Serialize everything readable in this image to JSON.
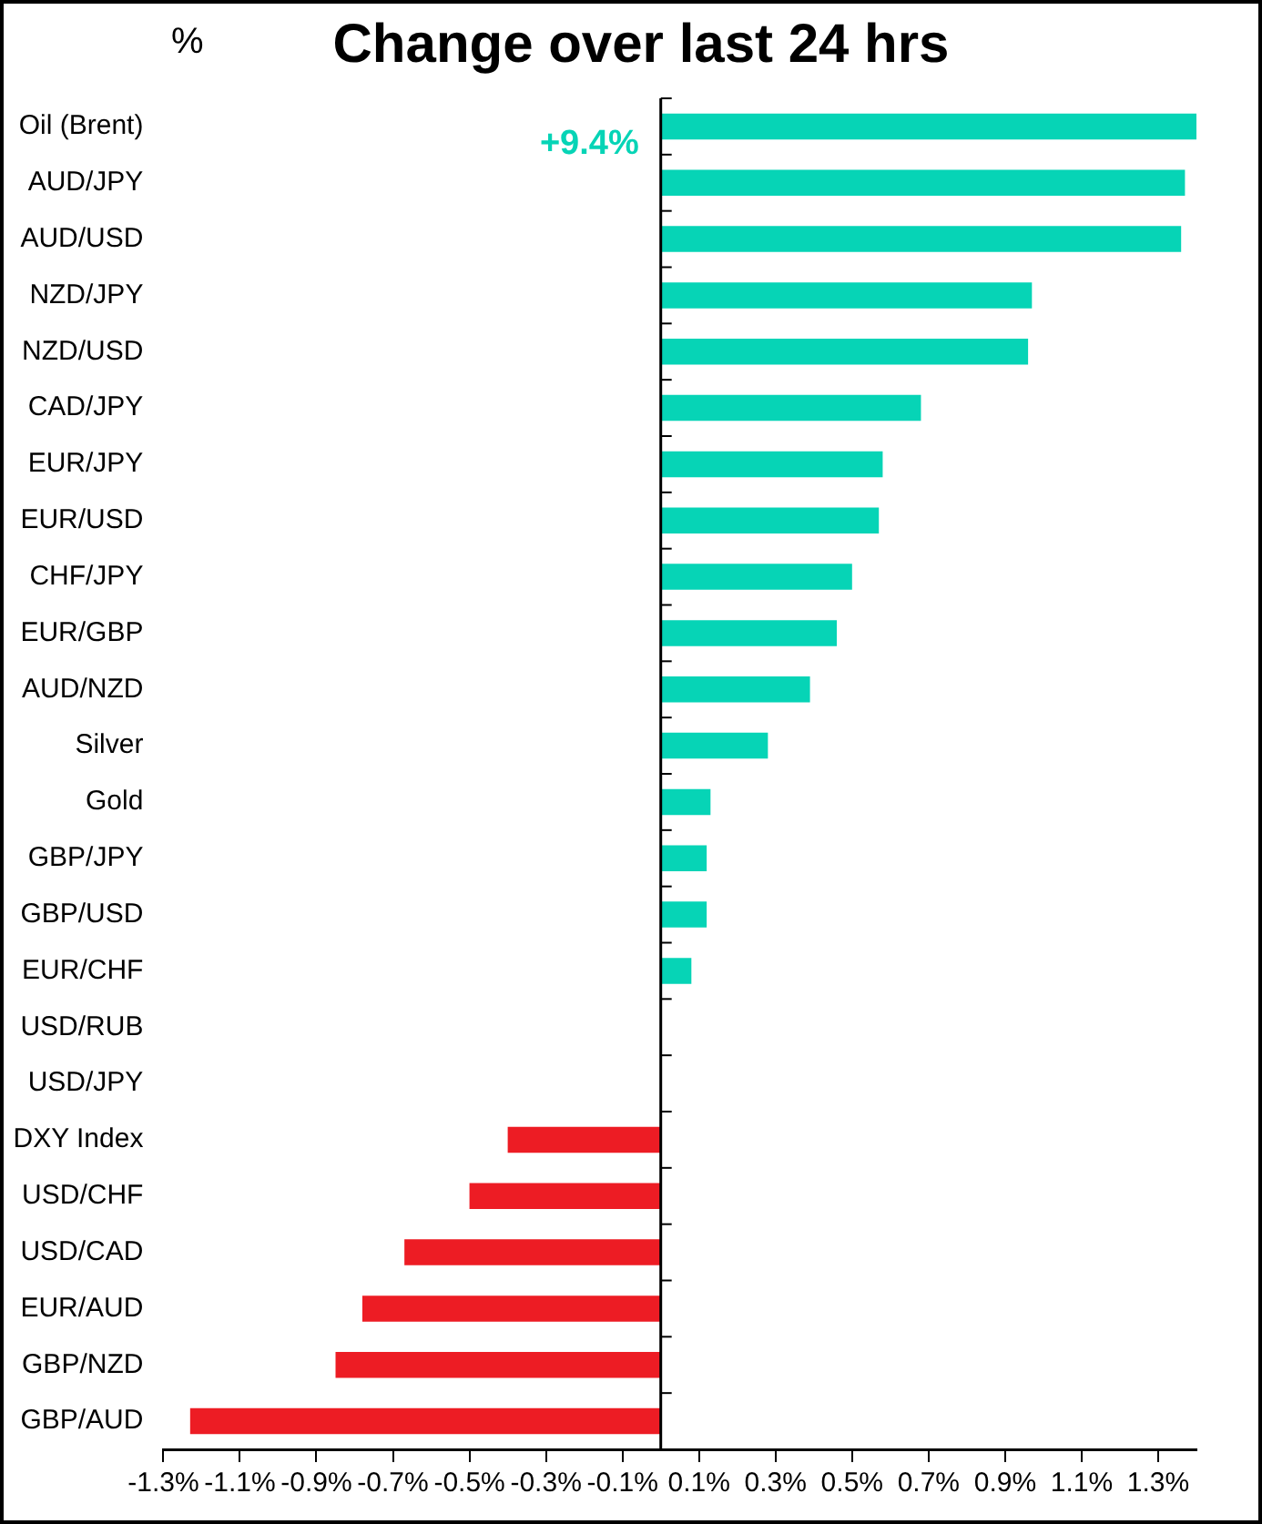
{
  "chart_data": {
    "type": "bar",
    "orientation": "horizontal",
    "title": "Change over last 24 hrs",
    "ylabel": "%",
    "categories": [
      "Oil (Brent)",
      "AUD/JPY",
      "AUD/USD",
      "NZD/JPY",
      "NZD/USD",
      "CAD/JPY",
      "EUR/JPY",
      "EUR/USD",
      "CHF/JPY",
      "EUR/GBP",
      "AUD/NZD",
      "Silver",
      "Gold",
      "GBP/JPY",
      "GBP/USD",
      "EUR/CHF",
      "USD/RUB",
      "USD/JPY",
      "DXY Index",
      "USD/CHF",
      "USD/CAD",
      "EUR/AUD",
      "GBP/NZD",
      "GBP/AUD"
    ],
    "values": [
      1.4,
      1.37,
      1.36,
      0.97,
      0.96,
      0.68,
      0.58,
      0.57,
      0.5,
      0.46,
      0.39,
      0.28,
      0.13,
      0.12,
      0.12,
      0.08,
      0,
      0,
      -0.4,
      -0.5,
      -0.67,
      -0.78,
      -0.85,
      -1.23
    ],
    "colors": [
      "#06d4b6",
      "#06d4b6",
      "#06d4b6",
      "#06d4b6",
      "#06d4b6",
      "#06d4b6",
      "#06d4b6",
      "#06d4b6",
      "#06d4b6",
      "#06d4b6",
      "#06d4b6",
      "#06d4b6",
      "#06d4b6",
      "#06d4b6",
      "#06d4b6",
      "#06d4b6",
      "#06d4b6",
      "#06d4b6",
      "#ed1c24",
      "#ed1c24",
      "#ed1c24",
      "#ed1c24",
      "#ed1c24",
      "#ed1c24"
    ],
    "xlim": [
      -1.3,
      1.4
    ],
    "xticks": [
      {
        "value": -1.3,
        "label": "-1.3%"
      },
      {
        "value": -1.1,
        "label": "-1.1%"
      },
      {
        "value": -0.9,
        "label": "-0.9%"
      },
      {
        "value": -0.7,
        "label": "-0.7%"
      },
      {
        "value": -0.5,
        "label": "-0.5%"
      },
      {
        "value": -0.3,
        "label": "-0.3%"
      },
      {
        "value": -0.1,
        "label": "-0.1%"
      },
      {
        "value": 0.1,
        "label": "0.1%"
      },
      {
        "value": 0.3,
        "label": "0.3%"
      },
      {
        "value": 0.5,
        "label": "0.5%"
      },
      {
        "value": 0.7,
        "label": "0.7%"
      },
      {
        "value": 0.9,
        "label": "0.9%"
      },
      {
        "value": 1.1,
        "label": "1.1%"
      },
      {
        "value": 1.3,
        "label": "1.3%"
      }
    ],
    "annotations": [
      {
        "text": "+9.4%",
        "x": 0,
        "y": "Oil (Brent)"
      }
    ],
    "grid": false,
    "legend": false
  }
}
